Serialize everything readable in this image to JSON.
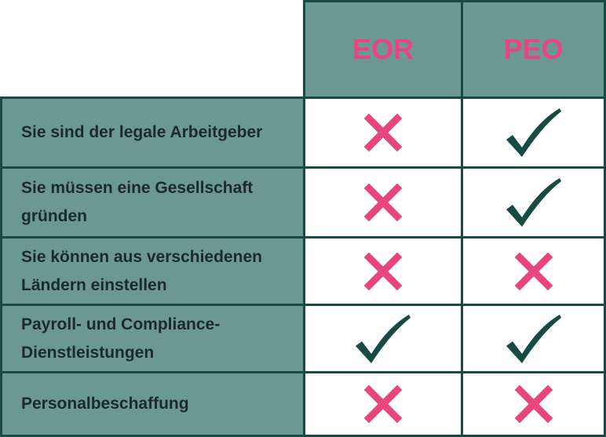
{
  "colors": {
    "header_bg": "#6b9891",
    "border": "#174a43",
    "cross": "#e8457f",
    "check": "#174a43"
  },
  "columns": [
    "EOR",
    "PEO"
  ],
  "rows": [
    {
      "label": "Sie sind der legale Arbeitgeber",
      "eor": "cross-icon",
      "peo": "check-icon"
    },
    {
      "label": "Sie müssen eine Gesellschaft gründen",
      "eor": "cross-icon",
      "peo": "check-icon"
    },
    {
      "label": "Sie können aus verschiedenen Ländern einstellen",
      "eor": "cross-icon",
      "peo": "cross-icon"
    },
    {
      "label": "Payroll- und Compliance-Dienstleistungen",
      "eor": "check-icon",
      "peo": "check-icon"
    },
    {
      "label": "Personalbeschaffung",
      "eor": "cross-icon",
      "peo": "cross-icon"
    }
  ]
}
